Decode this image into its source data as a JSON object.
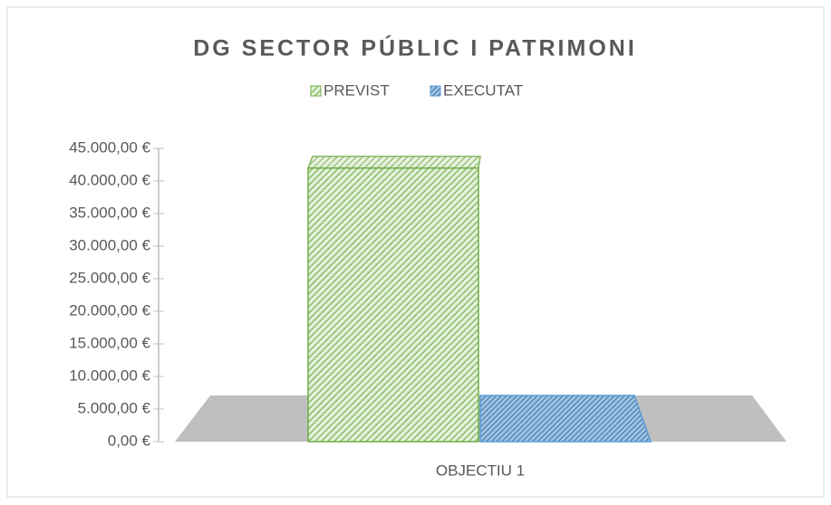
{
  "chart_data": {
    "type": "bar3d",
    "title": "DG SECTOR PÚBLIC I PATRIMONI",
    "categories": [
      "OBJECTIU 1"
    ],
    "series": [
      {
        "name": "PREVIST",
        "color": "#70ad47",
        "values": [
          42000
        ]
      },
      {
        "name": "EXECUTAT",
        "color": "#5b9bd5",
        "values": [
          0
        ]
      }
    ],
    "ylim": [
      0,
      45000
    ],
    "yticks": [
      {
        "value": 0,
        "label": "0,00 €"
      },
      {
        "value": 5000,
        "label": "5.000,00 €"
      },
      {
        "value": 10000,
        "label": "10.000,00 €"
      },
      {
        "value": 15000,
        "label": "15.000,00 €"
      },
      {
        "value": 20000,
        "label": "20.000,00 €"
      },
      {
        "value": 25000,
        "label": "25.000,00 €"
      },
      {
        "value": 30000,
        "label": "30.000,00 €"
      },
      {
        "value": 35000,
        "label": "35.000,00 €"
      },
      {
        "value": 40000,
        "label": "40.000,00 €"
      },
      {
        "value": 45000,
        "label": "45.000,00 €"
      }
    ],
    "legend": "top"
  }
}
